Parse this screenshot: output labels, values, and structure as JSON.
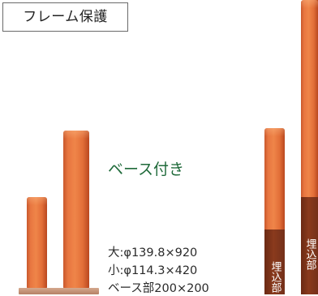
{
  "tag": {
    "label": "フレーム保護"
  },
  "spec": {
    "title": "ベース付き",
    "lines": [
      "大:φ139.8×920",
      "小:φ114.3×420",
      "ベース部200×200"
    ]
  },
  "embed_label": "埋込部"
}
